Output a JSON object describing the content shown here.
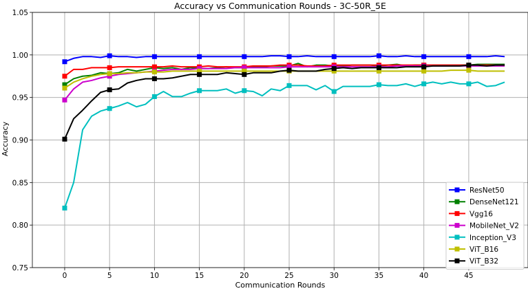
{
  "chart_data": {
    "type": "line",
    "title": "Accuracy vs Communication Rounds - 3C-50R_5E",
    "xlabel": "Communication Rounds",
    "ylabel": "Accuracy",
    "xlim": [
      -3.6,
      51.6
    ],
    "ylim": [
      0.75,
      1.05
    ],
    "xticks": [
      0,
      5,
      10,
      15,
      20,
      25,
      30,
      35,
      40,
      45
    ],
    "yticks": [
      0.75,
      0.8,
      0.85,
      0.9,
      0.95,
      1.0,
      1.05
    ],
    "ytick_labels": [
      "0.75",
      "0.80",
      "0.85",
      "0.90",
      "0.95",
      "1.00",
      "1.05"
    ],
    "grid": true,
    "legend_position": "lower-right",
    "marker_every": 5,
    "series": [
      {
        "name": "ResNet50",
        "color": "#0000ff",
        "values": [
          0.992,
          0.996,
          0.998,
          0.998,
          0.997,
          0.999,
          0.998,
          0.998,
          0.997,
          0.998,
          0.998,
          0.998,
          0.998,
          0.998,
          0.998,
          0.998,
          0.998,
          0.998,
          0.998,
          0.998,
          0.998,
          0.998,
          0.998,
          0.999,
          0.999,
          0.998,
          0.998,
          0.999,
          0.998,
          0.998,
          0.998,
          0.998,
          0.998,
          0.998,
          0.998,
          0.999,
          0.998,
          0.998,
          0.999,
          0.998,
          0.998,
          0.998,
          0.998,
          0.998,
          0.998,
          0.998,
          0.998,
          0.998,
          0.999,
          0.998
        ]
      },
      {
        "name": "DenseNet121",
        "color": "#008000",
        "values": [
          0.965,
          0.972,
          0.975,
          0.976,
          0.979,
          0.978,
          0.979,
          0.983,
          0.981,
          0.983,
          0.985,
          0.984,
          0.985,
          0.983,
          0.985,
          0.984,
          0.984,
          0.985,
          0.986,
          0.985,
          0.985,
          0.986,
          0.986,
          0.987,
          0.987,
          0.987,
          0.99,
          0.986,
          0.988,
          0.988,
          0.987,
          0.987,
          0.988,
          0.988,
          0.988,
          0.987,
          0.988,
          0.989,
          0.987,
          0.988,
          0.988,
          0.988,
          0.988,
          0.988,
          0.988,
          0.988,
          0.989,
          0.989,
          0.989,
          0.989
        ]
      },
      {
        "name": "Vgg16",
        "color": "#ff0000",
        "values": [
          0.975,
          0.983,
          0.983,
          0.985,
          0.985,
          0.985,
          0.986,
          0.986,
          0.986,
          0.986,
          0.986,
          0.986,
          0.987,
          0.986,
          0.986,
          0.986,
          0.987,
          0.986,
          0.986,
          0.986,
          0.986,
          0.987,
          0.987,
          0.987,
          0.988,
          0.988,
          0.988,
          0.987,
          0.987,
          0.987,
          0.988,
          0.988,
          0.988,
          0.988,
          0.988,
          0.988,
          0.988,
          0.988,
          0.988,
          0.988,
          0.988,
          0.988,
          0.988,
          0.988,
          0.988,
          0.988,
          0.988,
          0.988,
          0.988,
          0.988
        ]
      },
      {
        "name": "MobileNet_V2",
        "color": "#cc00cc",
        "values": [
          0.947,
          0.96,
          0.968,
          0.97,
          0.973,
          0.975,
          0.977,
          0.978,
          0.979,
          0.98,
          0.981,
          0.982,
          0.983,
          0.983,
          0.983,
          0.984,
          0.984,
          0.984,
          0.984,
          0.985,
          0.985,
          0.985,
          0.985,
          0.985,
          0.985,
          0.986,
          0.986,
          0.986,
          0.986,
          0.986,
          0.986,
          0.986,
          0.986,
          0.986,
          0.986,
          0.986,
          0.986,
          0.987,
          0.987,
          0.987,
          0.987,
          0.987,
          0.987,
          0.987,
          0.987,
          0.987,
          0.987,
          0.987,
          0.987,
          0.987
        ]
      },
      {
        "name": "Inception_V3",
        "color": "#00bfbf",
        "values": [
          0.82,
          0.85,
          0.912,
          0.928,
          0.934,
          0.937,
          0.94,
          0.944,
          0.939,
          0.942,
          0.951,
          0.957,
          0.951,
          0.951,
          0.955,
          0.958,
          0.958,
          0.958,
          0.96,
          0.955,
          0.958,
          0.957,
          0.952,
          0.96,
          0.958,
          0.964,
          0.964,
          0.964,
          0.959,
          0.964,
          0.957,
          0.963,
          0.963,
          0.963,
          0.963,
          0.965,
          0.964,
          0.964,
          0.966,
          0.963,
          0.966,
          0.968,
          0.966,
          0.968,
          0.966,
          0.966,
          0.968,
          0.963,
          0.964,
          0.968
        ]
      },
      {
        "name": "ViT_B16",
        "color": "#bfbf00",
        "values": [
          0.961,
          0.968,
          0.972,
          0.975,
          0.977,
          0.978,
          0.978,
          0.979,
          0.979,
          0.98,
          0.98,
          0.98,
          0.981,
          0.981,
          0.981,
          0.981,
          0.981,
          0.981,
          0.981,
          0.981,
          0.981,
          0.981,
          0.981,
          0.981,
          0.981,
          0.981,
          0.981,
          0.981,
          0.981,
          0.981,
          0.981,
          0.981,
          0.981,
          0.981,
          0.981,
          0.981,
          0.981,
          0.981,
          0.981,
          0.981,
          0.981,
          0.981,
          0.981,
          0.982,
          0.982,
          0.982,
          0.981,
          0.981,
          0.981,
          0.981
        ]
      },
      {
        "name": "ViT_B32",
        "color": "#000000",
        "values": [
          0.901,
          0.925,
          0.935,
          0.946,
          0.956,
          0.959,
          0.96,
          0.967,
          0.97,
          0.972,
          0.972,
          0.972,
          0.973,
          0.975,
          0.977,
          0.977,
          0.977,
          0.977,
          0.979,
          0.978,
          0.977,
          0.979,
          0.979,
          0.979,
          0.981,
          0.982,
          0.981,
          0.981,
          0.981,
          0.983,
          0.984,
          0.985,
          0.984,
          0.985,
          0.985,
          0.985,
          0.985,
          0.985,
          0.986,
          0.986,
          0.986,
          0.987,
          0.987,
          0.987,
          0.987,
          0.988,
          0.988,
          0.987,
          0.988,
          0.988
        ]
      }
    ]
  }
}
